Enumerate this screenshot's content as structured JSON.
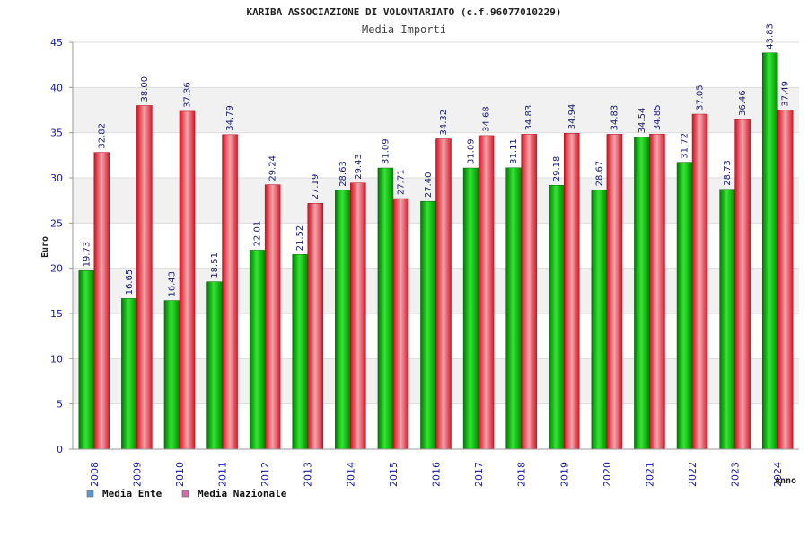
{
  "chart_data": {
    "type": "bar",
    "title": "KARIBA ASSOCIAZIONE DI VOLONTARIATO (c.f.96077010229)",
    "subtitle": "Media Importi",
    "xlabel": "Anno",
    "ylabel": "Euro",
    "ylim": [
      0,
      45
    ],
    "yticks": [
      0,
      5,
      10,
      15,
      20,
      25,
      30,
      35,
      40,
      45
    ],
    "grid": true,
    "legend_position": "bottom-left",
    "categories": [
      "2008",
      "2009",
      "2010",
      "2011",
      "2012",
      "2013",
      "2014",
      "2015",
      "2016",
      "2017",
      "2018",
      "2019",
      "2020",
      "2021",
      "2022",
      "2023",
      "2024"
    ],
    "series": [
      {
        "name": "Media Ente",
        "color": "#00b000",
        "legend_color": "#5b9bd5",
        "values": [
          19.73,
          16.65,
          16.43,
          18.51,
          22.01,
          21.52,
          28.63,
          31.09,
          27.4,
          31.09,
          31.11,
          29.18,
          28.67,
          34.54,
          31.72,
          28.73,
          43.83
        ],
        "labels": [
          "19.73",
          "16.65",
          "16.43",
          "18.51",
          "22.01",
          "21.52",
          "28.63",
          "31.09",
          "27.40",
          "31.09",
          "31.11",
          "29.18",
          "28.67",
          "34.54",
          "31.72",
          "28.73",
          "43.83"
        ]
      },
      {
        "name": "Media Nazionale",
        "color": "#e8283a",
        "legend_color": "#d26ba8",
        "values": [
          32.82,
          38.0,
          37.36,
          34.79,
          29.24,
          27.19,
          29.43,
          27.71,
          34.32,
          34.68,
          34.83,
          34.94,
          34.83,
          34.85,
          37.05,
          36.46,
          37.49
        ],
        "labels": [
          "32.82",
          "38.00",
          "37.36",
          "34.79",
          "29.24",
          "27.19",
          "29.43",
          "27.71",
          "34.32",
          "34.68",
          "34.83",
          "34.94",
          "34.83",
          "34.85",
          "37.05",
          "36.46",
          "37.49"
        ]
      }
    ]
  }
}
